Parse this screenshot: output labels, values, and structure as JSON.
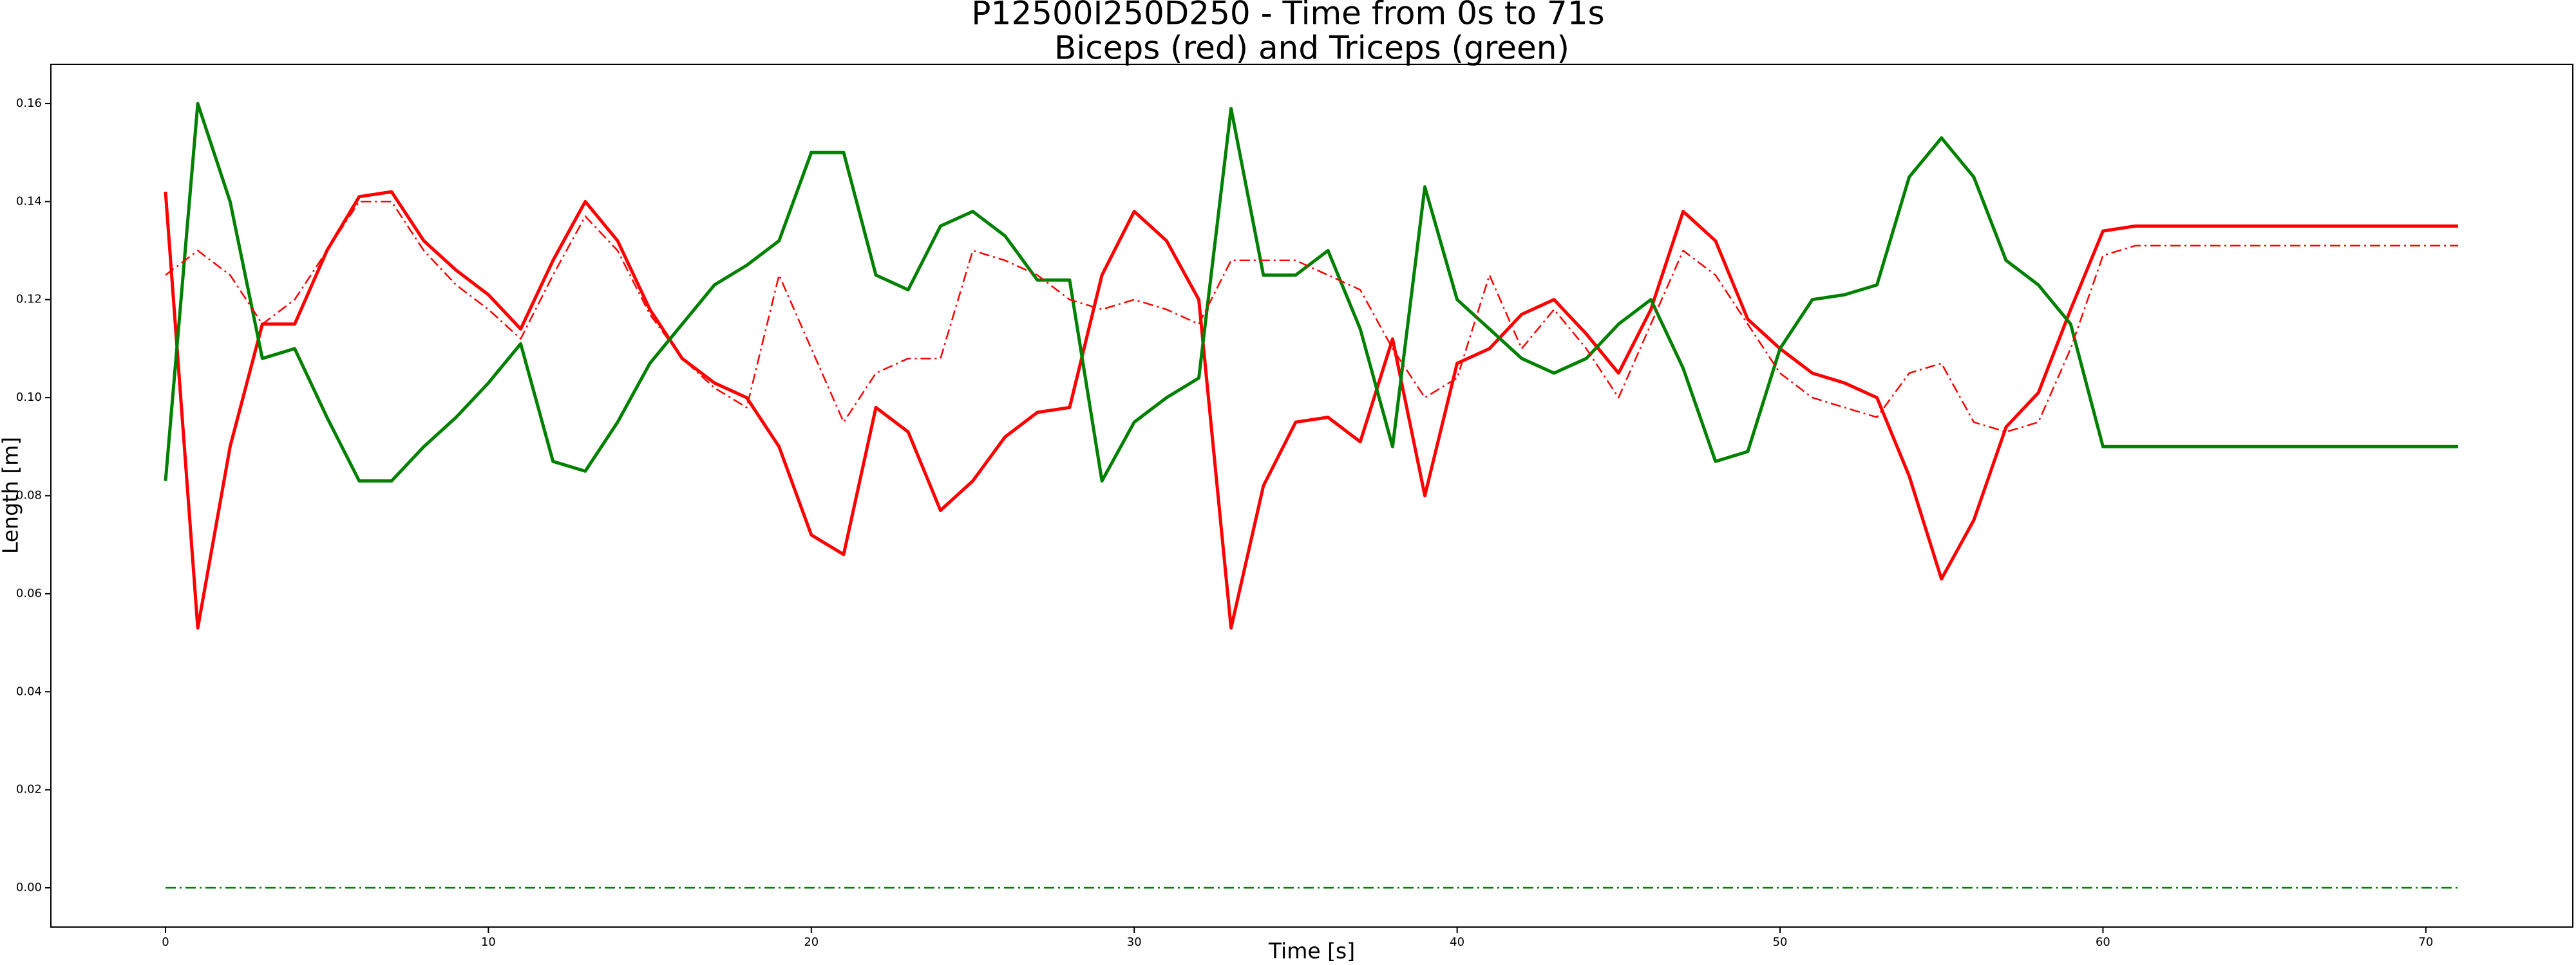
{
  "chart_data": {
    "type": "line",
    "title": "P12500I250D250 - Time from 0s to 71s",
    "subtitle": "Biceps (red) and Triceps (green)",
    "x_label": "Time [s]",
    "y_label": "Length [m]",
    "x": [
      0,
      1,
      2,
      3,
      4,
      5,
      6,
      7,
      8,
      9,
      10,
      11,
      12,
      13,
      14,
      15,
      16,
      17,
      18,
      19,
      20,
      21,
      22,
      23,
      24,
      25,
      26,
      27,
      28,
      29,
      30,
      31,
      32,
      33,
      34,
      35,
      36,
      37,
      38,
      39,
      40,
      41,
      42,
      43,
      44,
      45,
      46,
      47,
      48,
      49,
      50,
      51,
      52,
      53,
      54,
      55,
      56,
      57,
      58,
      59,
      60,
      61,
      62,
      63,
      64,
      65,
      66,
      67,
      68,
      69,
      70,
      71
    ],
    "series": [
      {
        "color": "#ff0000",
        "linestyle": "solid",
        "values": [
          0.142,
          0.053,
          0.09,
          0.115,
          0.115,
          0.13,
          0.141,
          0.142,
          0.132,
          0.126,
          0.121,
          0.114,
          0.128,
          0.14,
          0.132,
          0.118,
          0.108,
          0.103,
          0.1,
          0.09,
          0.072,
          0.068,
          0.098,
          0.093,
          0.077,
          0.083,
          0.092,
          0.097,
          0.098,
          0.125,
          0.138,
          0.132,
          0.12,
          0.053,
          0.082,
          0.095,
          0.096,
          0.091,
          0.112,
          0.08,
          0.107,
          0.11,
          0.117,
          0.12,
          0.113,
          0.105,
          0.118,
          0.138,
          0.132,
          0.116,
          0.11,
          0.105,
          0.103,
          0.1,
          0.084,
          0.063,
          0.075,
          0.094,
          0.101,
          0.118,
          0.134,
          0.135,
          0.135,
          0.135,
          0.135,
          0.135,
          0.135,
          0.135,
          0.135,
          0.135,
          0.135,
          0.135
        ]
      },
      {
        "color": "#008000",
        "linestyle": "solid",
        "values": [
          0.083,
          0.16,
          0.14,
          0.108,
          0.11,
          0.096,
          0.083,
          0.083,
          0.09,
          0.096,
          0.103,
          0.111,
          0.087,
          0.085,
          0.095,
          0.107,
          0.115,
          0.123,
          0.127,
          0.132,
          0.15,
          0.15,
          0.125,
          0.122,
          0.135,
          0.138,
          0.133,
          0.124,
          0.124,
          0.083,
          0.095,
          0.1,
          0.104,
          0.159,
          0.125,
          0.125,
          0.13,
          0.114,
          0.09,
          0.143,
          0.12,
          0.114,
          0.108,
          0.105,
          0.108,
          0.115,
          0.12,
          0.106,
          0.087,
          0.089,
          0.11,
          0.12,
          0.121,
          0.123,
          0.145,
          0.153,
          0.145,
          0.128,
          0.123,
          0.115,
          0.09,
          0.09,
          0.09,
          0.09,
          0.09,
          0.09,
          0.09,
          0.09,
          0.09,
          0.09,
          0.09,
          0.09
        ]
      },
      {
        "color": "#ff0000",
        "linestyle": "dashdot",
        "values": [
          0.125,
          0.13,
          0.125,
          0.115,
          0.12,
          0.13,
          0.14,
          0.14,
          0.13,
          0.123,
          0.118,
          0.112,
          0.125,
          0.137,
          0.13,
          0.117,
          0.108,
          0.102,
          0.098,
          0.125,
          0.11,
          0.095,
          0.105,
          0.108,
          0.108,
          0.13,
          0.128,
          0.125,
          0.12,
          0.118,
          0.12,
          0.118,
          0.115,
          0.128,
          0.128,
          0.128,
          0.125,
          0.122,
          0.11,
          0.1,
          0.104,
          0.125,
          0.11,
          0.118,
          0.11,
          0.1,
          0.115,
          0.13,
          0.125,
          0.115,
          0.105,
          0.1,
          0.098,
          0.096,
          0.105,
          0.107,
          0.095,
          0.093,
          0.095,
          0.11,
          0.129,
          0.131,
          0.131,
          0.131,
          0.131,
          0.131,
          0.131,
          0.131,
          0.131,
          0.131,
          0.131,
          0.131
        ]
      },
      {
        "color": "#008000",
        "linestyle": "dashdot",
        "values": [
          0,
          0,
          0,
          0,
          0,
          0,
          0,
          0,
          0,
          0,
          0,
          0,
          0,
          0,
          0,
          0,
          0,
          0,
          0,
          0,
          0,
          0,
          0,
          0,
          0,
          0,
          0,
          0,
          0,
          0,
          0,
          0,
          0,
          0,
          0,
          0,
          0,
          0,
          0,
          0,
          0,
          0,
          0,
          0,
          0,
          0,
          0,
          0,
          0,
          0,
          0,
          0,
          0,
          0,
          0,
          0,
          0,
          0,
          0,
          0,
          0,
          0,
          0,
          0,
          0,
          0,
          0,
          0,
          0,
          0,
          0,
          0
        ]
      }
    ],
    "xlim": [
      -3.55,
      74.55
    ],
    "ylim": [
      -0.008,
      0.168
    ],
    "xticks": [
      0,
      10,
      20,
      30,
      40,
      50,
      60,
      70
    ],
    "yticks": [
      {
        "value": 0,
        "label": "0.00"
      },
      {
        "value": 0.02,
        "label": "0.02"
      },
      {
        "value": 0.04,
        "label": "0.04"
      },
      {
        "value": 0.06,
        "label": "0.06"
      },
      {
        "value": 0.08,
        "label": "0.08"
      },
      {
        "value": 0.1,
        "label": "0.10"
      },
      {
        "value": 0.12,
        "label": "0.12"
      },
      {
        "value": 0.14,
        "label": "0.14"
      },
      {
        "value": 0.16,
        "label": "0.16"
      }
    ],
    "grid": false
  }
}
